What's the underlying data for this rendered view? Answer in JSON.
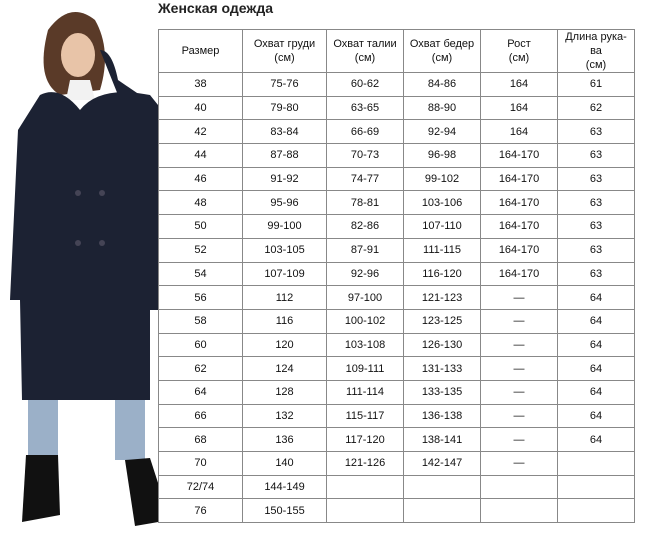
{
  "title": "Женская одежда",
  "headers": [
    "Размер",
    "Охват груди (см)",
    "Охват талии (см)",
    "Охват бедер (см)",
    "Рост (см)",
    "Длина рука-ва (см)"
  ],
  "rows": [
    [
      "38",
      "75-76",
      "60-62",
      "84-86",
      "164",
      "61"
    ],
    [
      "40",
      "79-80",
      "63-65",
      "88-90",
      "164",
      "62"
    ],
    [
      "42",
      "83-84",
      "66-69",
      "92-94",
      "164",
      "63"
    ],
    [
      "44",
      "87-88",
      "70-73",
      "96-98",
      "164-170",
      "63"
    ],
    [
      "46",
      "91-92",
      "74-77",
      "99-102",
      "164-170",
      "63"
    ],
    [
      "48",
      "95-96",
      "78-81",
      "103-106",
      "164-170",
      "63"
    ],
    [
      "50",
      "99-100",
      "82-86",
      "107-110",
      "164-170",
      "63"
    ],
    [
      "52",
      "103-105",
      "87-91",
      "111-115",
      "164-170",
      "63"
    ],
    [
      "54",
      "107-109",
      "92-96",
      "116-120",
      "164-170",
      "63"
    ],
    [
      "56",
      "112",
      "97-100",
      "121-123",
      "—",
      "64"
    ],
    [
      "58",
      "116",
      "100-102",
      "123-125",
      "—",
      "64"
    ],
    [
      "60",
      "120",
      "103-108",
      "126-130",
      "—",
      "64"
    ],
    [
      "62",
      "124",
      "109-111",
      "131-133",
      "—",
      "64"
    ],
    [
      "64",
      "128",
      "111-114",
      "133-135",
      "—",
      "64"
    ],
    [
      "66",
      "132",
      "115-117",
      "136-138",
      "—",
      "64"
    ],
    [
      "68",
      "136",
      "117-120",
      "138-141",
      "—",
      "64"
    ],
    [
      "70",
      "140",
      "121-126",
      "142-147",
      "—",
      ""
    ],
    [
      "72/74",
      "144-149",
      "",
      "",
      "",
      ""
    ],
    [
      "76",
      "150-155",
      "",
      "",
      "",
      ""
    ]
  ],
  "colors": {
    "coat": "#1c2233",
    "border": "#888888"
  }
}
